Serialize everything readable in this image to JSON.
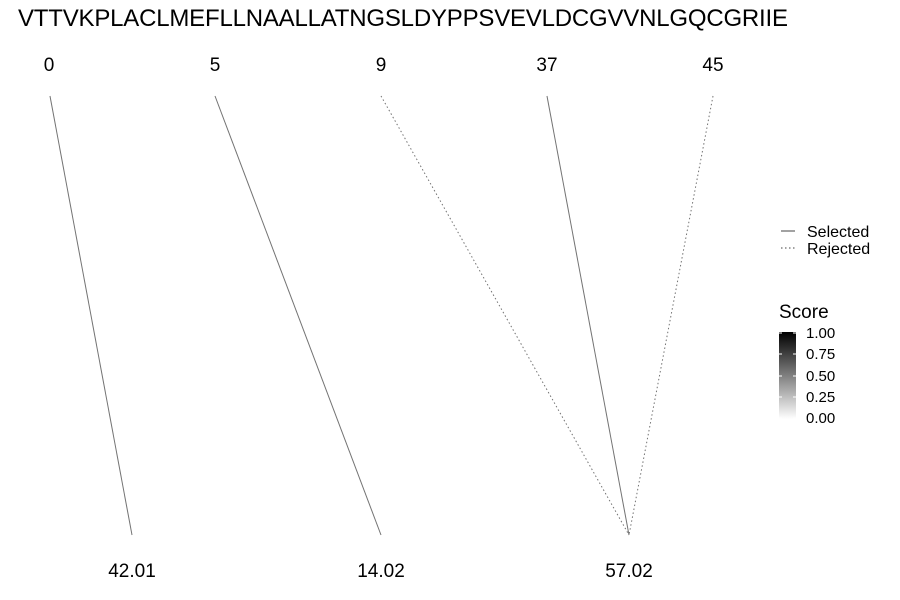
{
  "sequence": "VTTVKPLACLMEFLLNAALLATNGSLDYPPSVEVLDCGVVNLGQCGRIIE",
  "chart_data": {
    "type": "alignment-links",
    "top_positions": [
      "0",
      "5",
      "9",
      "37",
      "45"
    ],
    "bottom_values": [
      "42.01",
      "14.02",
      "57.02"
    ],
    "links": [
      {
        "from": "0",
        "to": "42.01",
        "status": "Selected",
        "score": 0.55
      },
      {
        "from": "5",
        "to": "14.02",
        "status": "Selected",
        "score": 0.55
      },
      {
        "from": "9",
        "to": "57.02",
        "status": "Rejected",
        "score": 0.55
      },
      {
        "from": "37",
        "to": "57.02",
        "status": "Selected",
        "score": 0.55
      },
      {
        "from": "45",
        "to": "57.02",
        "status": "Rejected",
        "score": 0.55
      }
    ],
    "legend": {
      "linetype": {
        "selected": "Selected",
        "rejected": "Rejected"
      },
      "score_title": "Score",
      "score_ticks": [
        "1.00",
        "0.75",
        "0.50",
        "0.25",
        "0.00"
      ]
    }
  }
}
